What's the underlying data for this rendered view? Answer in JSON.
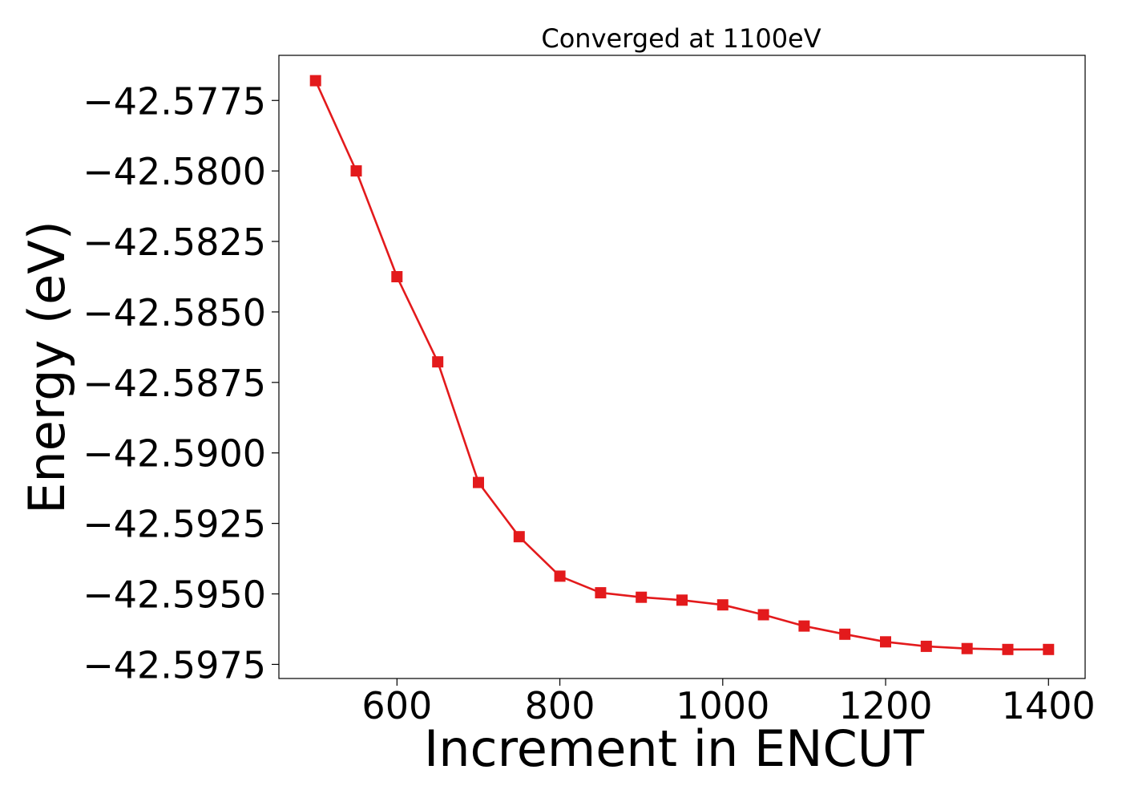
{
  "chart_data": {
    "type": "line",
    "title": "Converged at 1100eV",
    "xlabel": "Increment in ENCUT",
    "ylabel": "Energy (eV)",
    "xlim": [
      455,
      1445
    ],
    "ylim": [
      -42.598,
      -42.5759
    ],
    "xticks": [
      600,
      800,
      1000,
      1200,
      1400
    ],
    "xtick_labels": [
      "600",
      "800",
      "1000",
      "1200",
      "1400"
    ],
    "yticks": [
      -42.5775,
      -42.58,
      -42.5825,
      -42.585,
      -42.5875,
      -42.59,
      -42.5925,
      -42.595,
      -42.5975
    ],
    "ytick_labels": [
      "−42.5775",
      "−42.5800",
      "−42.5825",
      "−42.5850",
      "−42.5875",
      "−42.5900",
      "−42.5925",
      "−42.5950",
      "−42.5975"
    ],
    "grid": false,
    "series": [
      {
        "color": "#e31a1c",
        "marker": "square",
        "x": [
          500,
          550,
          600,
          650,
          700,
          750,
          800,
          850,
          900,
          950,
          1000,
          1050,
          1100,
          1150,
          1200,
          1250,
          1300,
          1350,
          1400
        ],
        "y": [
          -42.5768,
          -42.58,
          -42.58375,
          -42.58677,
          -42.59105,
          -42.59297,
          -42.59437,
          -42.59496,
          -42.59512,
          -42.59522,
          -42.59539,
          -42.59574,
          -42.59614,
          -42.59643,
          -42.5967,
          -42.59686,
          -42.59694,
          -42.59697,
          -42.59697
        ]
      }
    ]
  }
}
